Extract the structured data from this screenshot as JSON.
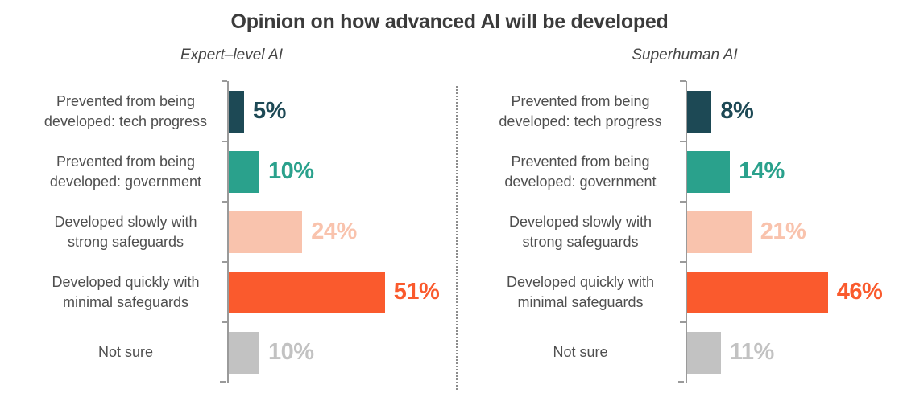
{
  "title": "Opinion on how advanced AI will be developed",
  "chart_data": {
    "type": "bar",
    "orientation": "horizontal",
    "unit": "%",
    "value_label_format": "{v}%",
    "value_label_position": "end-of-bar",
    "grid": false,
    "panel_divider": "dotted-vertical-line",
    "axis_color": "#9a9a9a",
    "categories": [
      "Prevented from being\ndeveloped: tech progress",
      "Prevented from being\ndeveloped: government",
      "Developed slowly with\nstrong safeguards",
      "Developed quickly with\nminimal safeguards",
      "Not sure"
    ],
    "series": [
      {
        "name": "Expert–level AI",
        "values": [
          5,
          10,
          24,
          51,
          10
        ]
      },
      {
        "name": "Superhuman AI",
        "values": [
          8,
          14,
          21,
          46,
          11
        ]
      }
    ],
    "bar_colors": [
      "#1d4955",
      "#2aa18c",
      "#f9c3ad",
      "#fa5a2d",
      "#c2c2c2"
    ]
  }
}
